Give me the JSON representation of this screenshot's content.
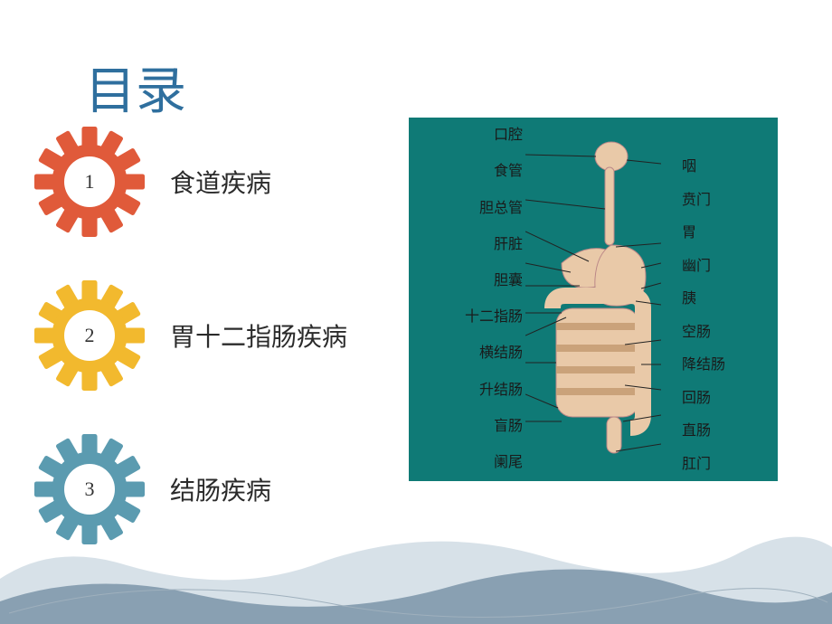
{
  "title": {
    "text": "目录",
    "color": "#2f6f9e"
  },
  "toc": [
    {
      "num": "1",
      "label": "食道疾病",
      "gear_color": "#e05a3a"
    },
    {
      "num": "2",
      "label": "胃十二指肠疾病",
      "gear_color": "#f2b92e"
    },
    {
      "num": "3",
      "label": "结肠疾病",
      "gear_color": "#5b9bb0"
    }
  ],
  "figure": {
    "background": "#0f7a76",
    "label_color": "#1a1a1a",
    "label_fontsize": 16,
    "body_fill": "#e9c9a8",
    "left_labels": [
      "口腔",
      "食管",
      "胆总管",
      "肝脏",
      "胆囊",
      "十二指肠",
      "横结肠",
      "升结肠",
      "盲肠",
      "阑尾"
    ],
    "right_labels": [
      "咽",
      "贲门",
      "胃",
      "幽门",
      "胰",
      "空肠",
      "降结肠",
      "回肠",
      "直肠",
      "肛门"
    ]
  },
  "mountains": {
    "far_color": "#b6c9d6",
    "near_color": "#6f8aa0",
    "line_color": "#9fb0bd"
  }
}
